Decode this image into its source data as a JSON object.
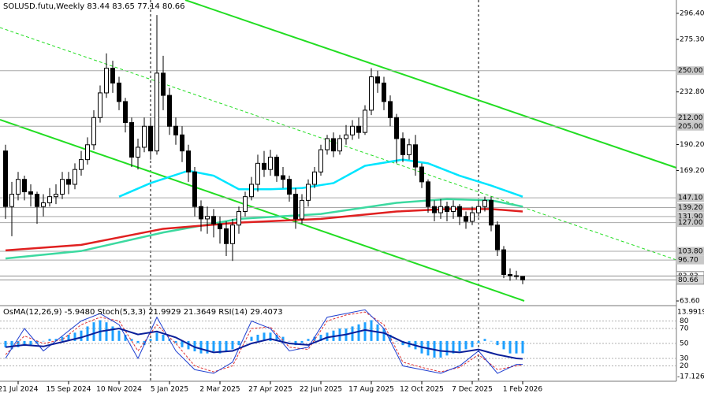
{
  "chart_data": [
    {
      "type": "candlestick",
      "title": "SOLUSD.futu,Weekly",
      "categories": [
        null,
        null,
        "21 Jul 2024",
        null,
        null,
        null,
        null,
        null,
        null,
        null,
        "15 Sep 2024",
        null,
        null,
        null,
        null,
        null,
        null,
        null,
        "10 Nov 2024",
        null,
        null,
        null,
        null,
        null,
        null,
        null,
        "5 Jan 2025",
        null,
        null,
        null,
        null,
        null,
        null,
        null,
        "2 Mar 2025",
        null,
        null,
        null,
        null,
        null,
        null,
        null,
        "27 Apr 2025",
        null,
        null,
        null,
        null,
        null,
        null,
        null,
        "22 Jun 2025",
        null,
        null,
        null,
        null,
        null,
        null,
        null,
        "17 Aug 2025",
        null,
        null,
        null,
        null,
        null,
        null,
        null,
        "12 Oct 2025",
        null,
        null,
        null,
        null,
        null,
        null,
        null,
        "7 Dec 2025",
        null,
        null,
        null,
        null,
        null,
        null,
        null,
        "1 Feb 2026"
      ],
      "open": [
        185,
        140,
        150,
        162,
        152,
        150,
        140,
        143,
        148,
        150,
        162,
        158,
        170,
        178,
        190,
        212,
        232,
        252,
        240,
        225,
        208,
        180,
        188,
        205,
        185,
        248,
        230,
        205,
        198,
        185,
        168,
        140,
        130,
        132,
        126,
        122,
        110,
        125,
        136,
        148,
        158,
        175,
        170,
        180,
        165,
        162,
        150,
        130,
        145,
        158,
        168,
        186,
        195,
        185,
        195,
        198,
        205,
        200,
        218,
        245,
        240,
        225,
        212,
        195,
        182,
        190,
        172,
        160,
        140,
        135,
        140,
        136,
        140,
        132,
        128,
        135,
        140,
        145,
        125,
        105,
        85,
        84,
        83.44
      ],
      "high": [
        190,
        160,
        168,
        165,
        158,
        152,
        150,
        155,
        158,
        168,
        168,
        175,
        185,
        196,
        218,
        238,
        264,
        258,
        245,
        228,
        212,
        195,
        212,
        212,
        295,
        262,
        236,
        212,
        205,
        190,
        172,
        145,
        140,
        138,
        132,
        128,
        130,
        140,
        152,
        164,
        182,
        185,
        186,
        182,
        172,
        165,
        155,
        150,
        162,
        172,
        190,
        198,
        200,
        198,
        206,
        210,
        212,
        222,
        252,
        250,
        245,
        230,
        215,
        200,
        195,
        198,
        175,
        162,
        145,
        146,
        144,
        145,
        142,
        136,
        140,
        145,
        148,
        148,
        128,
        108,
        90,
        88,
        83.65
      ],
      "low": [
        130,
        116,
        145,
        145,
        140,
        126,
        132,
        140,
        142,
        146,
        150,
        154,
        165,
        174,
        186,
        208,
        228,
        232,
        218,
        200,
        172,
        170,
        184,
        178,
        182,
        218,
        198,
        190,
        176,
        160,
        132,
        120,
        118,
        115,
        110,
        100,
        96,
        118,
        132,
        145,
        152,
        164,
        165,
        160,
        155,
        144,
        122,
        126,
        140,
        155,
        165,
        182,
        180,
        182,
        190,
        194,
        195,
        198,
        214,
        232,
        218,
        205,
        175,
        176,
        178,
        165,
        155,
        135,
        128,
        130,
        128,
        130,
        125,
        122,
        125,
        132,
        136,
        120,
        100,
        82,
        80,
        81,
        77.14
      ],
      "close": [
        140,
        150,
        162,
        152,
        150,
        140,
        143,
        148,
        150,
        162,
        158,
        170,
        178,
        190,
        212,
        232,
        252,
        240,
        225,
        208,
        180,
        188,
        205,
        185,
        248,
        230,
        205,
        198,
        185,
        168,
        140,
        130,
        132,
        126,
        122,
        110,
        125,
        136,
        148,
        158,
        175,
        170,
        180,
        165,
        162,
        150,
        130,
        145,
        158,
        168,
        186,
        195,
        185,
        195,
        198,
        205,
        200,
        218,
        245,
        240,
        225,
        212,
        195,
        182,
        190,
        172,
        160,
        140,
        135,
        140,
        136,
        140,
        132,
        128,
        135,
        140,
        145,
        125,
        105,
        85,
        84,
        83.44,
        80.66
      ],
      "up_color": "#ffffff",
      "down_color": "#000000",
      "ylim": [
        59.8,
        307.2
      ],
      "yticks": [
        {
          "value": 296.4,
          "label": "296.40"
        },
        {
          "value": 275.3,
          "label": "275.30"
        },
        {
          "value": 232.8,
          "label": "232.80"
        },
        {
          "value": 190.2,
          "label": "190.20"
        },
        {
          "value": 169.2,
          "label": "169.20"
        },
        {
          "value": 63.6,
          "label": "63.60"
        }
      ],
      "levels": [
        {
          "value": 250,
          "label": "250.00"
        },
        {
          "value": 212,
          "label": "212.00"
        },
        {
          "value": 205,
          "label": "205.00"
        },
        {
          "value": 147.1,
          "label": "147.10"
        },
        {
          "value": 139.2,
          "label": "139.20"
        },
        {
          "value": 131.9,
          "label": "131.90"
        },
        {
          "value": 127,
          "label": "127.00"
        },
        {
          "value": 103.8,
          "label": "103.80"
        },
        {
          "value": 96.7,
          "label": "96.70"
        }
      ],
      "price_lines": [
        83.83,
        80.66
      ],
      "moving_averages": [
        {
          "color": "#00e5ff",
          "x": [
            18,
            23,
            29,
            33,
            37,
            42,
            47,
            52,
            57,
            63,
            67,
            72,
            77,
            82
          ],
          "values": [
            148,
            159,
            169,
            165,
            154,
            154,
            155,
            159,
            173,
            178,
            175,
            165,
            157,
            148
          ]
        },
        {
          "color": "#3cd9a0",
          "x": [
            0,
            12,
            25,
            37,
            50,
            62,
            70,
            77,
            82
          ],
          "values": [
            98,
            104,
            119,
            130,
            134,
            143,
            146,
            145,
            140
          ]
        },
        {
          "color": "#e02020",
          "x": [
            0,
            12,
            25,
            37,
            50,
            62,
            70,
            77,
            82
          ],
          "values": [
            104.5,
            109,
            122,
            127,
            130,
            136,
            138,
            138,
            136
          ]
        }
      ]
    },
    {
      "type": "oscillator",
      "ylim": [
        0,
        100
      ],
      "yticks": [
        80,
        70,
        50,
        30,
        20
      ],
      "osma": {
        "name": "OsMA(12,26,9)",
        "color": "#1ea0ff",
        "value_label": "-5.9480",
        "ylim": [
          -17.12602,
          13.9919
        ],
        "yticks": [
          13.9919,
          -17.12602
        ],
        "values": [
          -3,
          -4,
          -3,
          -2,
          -2,
          -1,
          0,
          1,
          1,
          2,
          3,
          4,
          5,
          7,
          9,
          10,
          9,
          7,
          5,
          3,
          1,
          -1,
          -2,
          1,
          4,
          3,
          1,
          -1,
          -3,
          -4,
          -5,
          -6,
          -6,
          -5,
          -6,
          -5,
          -4,
          -2,
          0,
          2,
          3,
          4,
          4,
          3,
          2,
          0,
          -2,
          -1,
          1,
          2,
          3,
          4,
          5,
          6,
          6,
          7,
          8,
          9,
          10,
          8,
          6,
          3,
          0,
          -2,
          -3,
          -4,
          -6,
          -7,
          -8,
          -8,
          -7,
          -6,
          -5,
          -4,
          -3,
          -1,
          1,
          0,
          -2,
          -4,
          -6,
          -6,
          -5.948
        ]
      },
      "stoch": {
        "name": "Stoch(5,3,3)",
        "color": "#1f3fd0",
        "signal_color": "#e03030",
        "x": [
          0,
          3,
          6,
          9,
          12,
          15,
          18,
          21,
          24,
          27,
          30,
          33,
          36,
          39,
          42,
          45,
          48,
          51,
          54,
          57,
          60,
          63,
          66,
          69,
          72,
          75,
          78,
          81,
          82
        ],
        "main": [
          30,
          70,
          40,
          60,
          80,
          90,
          75,
          30,
          85,
          40,
          15,
          10,
          25,
          80,
          70,
          40,
          45,
          85,
          90,
          95,
          70,
          20,
          15,
          10,
          20,
          40,
          10,
          22,
          21.9929
        ],
        "signal": [
          35,
          60,
          50,
          55,
          75,
          85,
          80,
          40,
          75,
          50,
          20,
          12,
          20,
          70,
          72,
          45,
          42,
          80,
          88,
          92,
          75,
          25,
          18,
          12,
          18,
          35,
          15,
          20,
          21.3649
        ]
      },
      "rsi": {
        "name": "RSI(14)",
        "color": "#0a1f9a",
        "x": [
          0,
          3,
          6,
          9,
          12,
          15,
          18,
          21,
          24,
          27,
          30,
          33,
          36,
          39,
          42,
          45,
          48,
          51,
          54,
          57,
          60,
          63,
          66,
          69,
          72,
          75,
          78,
          81,
          82
        ],
        "values": [
          45,
          48,
          46,
          52,
          58,
          66,
          70,
          62,
          66,
          58,
          45,
          38,
          40,
          50,
          56,
          50,
          48,
          58,
          62,
          68,
          64,
          52,
          45,
          40,
          38,
          42,
          35,
          30,
          29.4073
        ]
      }
    }
  ]
}
